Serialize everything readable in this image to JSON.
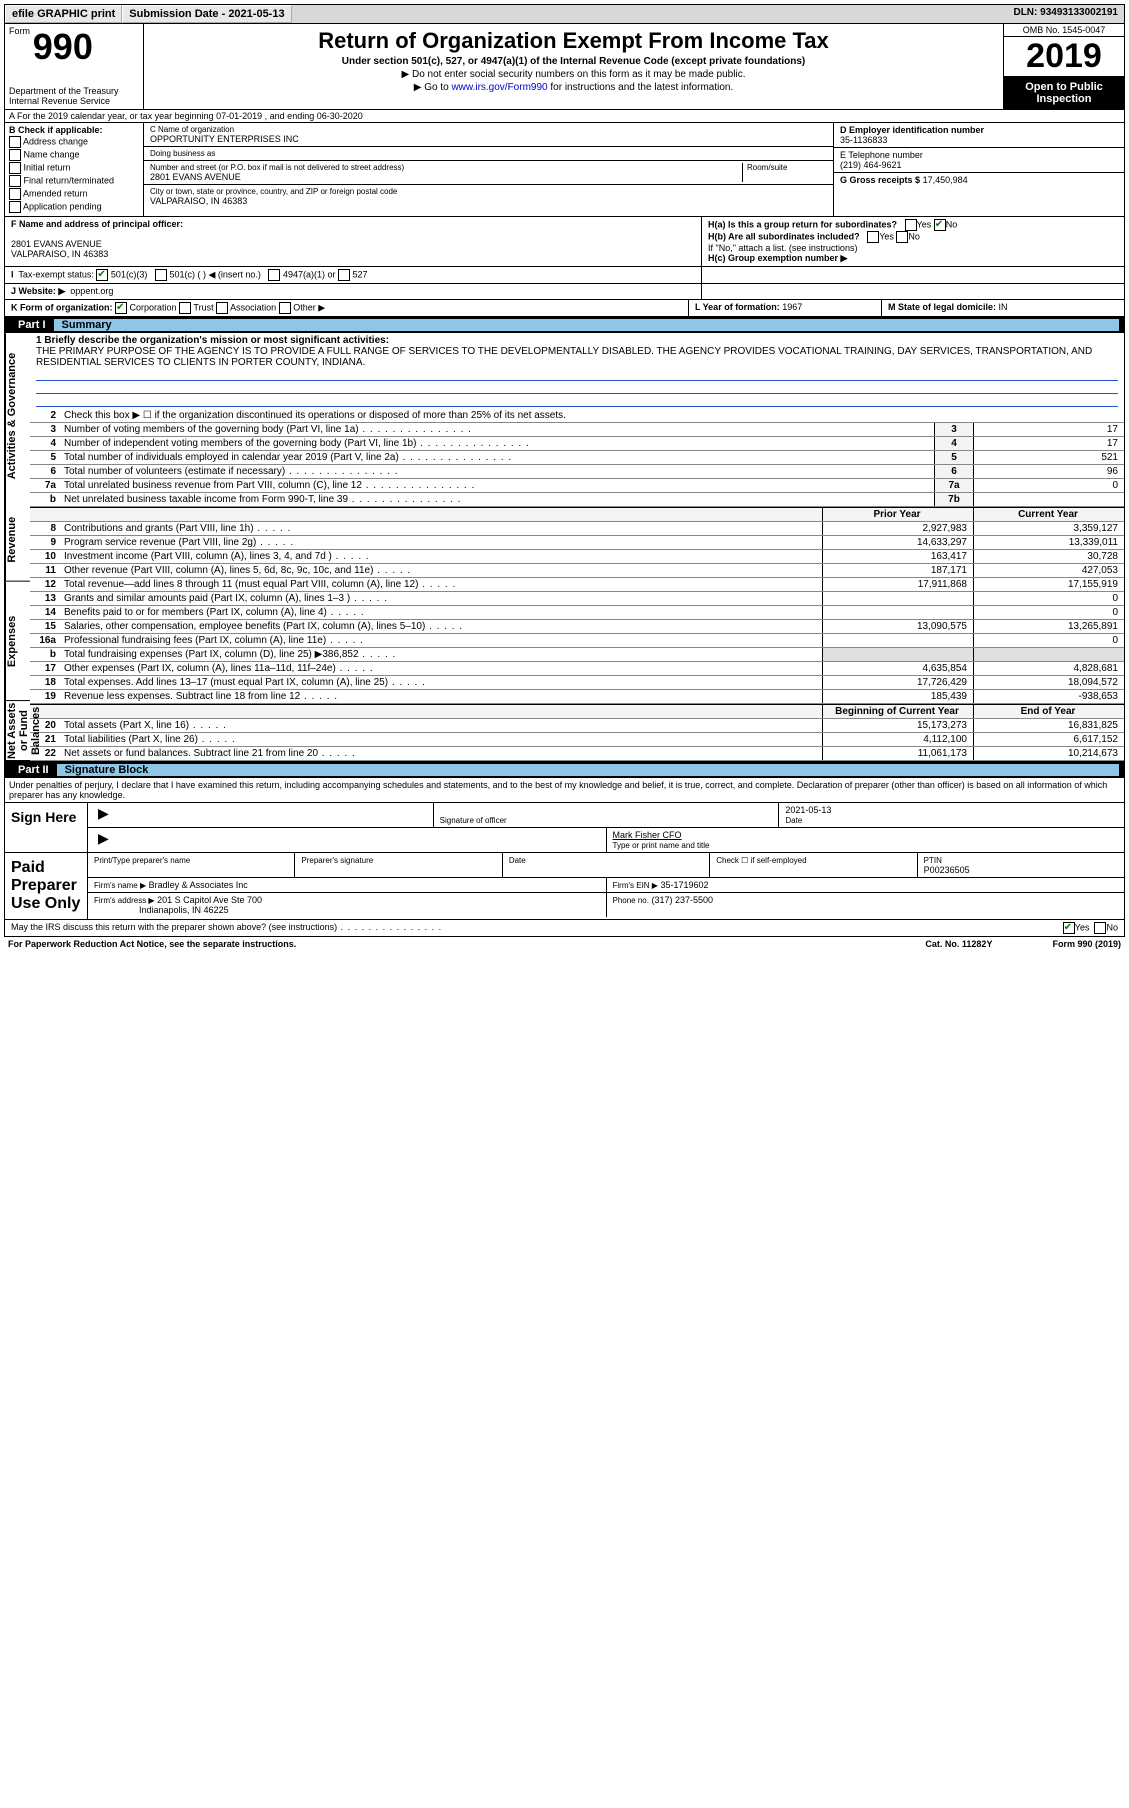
{
  "topbar": {
    "efile": "efile GRAPHIC print",
    "subdate_label": "Submission Date - 2021-05-13",
    "dln": "DLN: 93493133002191"
  },
  "header": {
    "form_label": "Form",
    "form_no": "990",
    "dept": "Department of the Treasury Internal Revenue Service",
    "title": "Return of Organization Exempt From Income Tax",
    "subtitle": "Under section 501(c), 527, or 4947(a)(1) of the Internal Revenue Code (except private foundations)",
    "hint1": "▶ Do not enter social security numbers on this form as it may be made public.",
    "hint2_pre": "▶ Go to ",
    "hint2_link": "www.irs.gov/Form990",
    "hint2_post": " for instructions and the latest information.",
    "omb": "OMB No. 1545-0047",
    "year": "2019",
    "inspect": "Open to Public Inspection"
  },
  "lineA": "A For the 2019 calendar year, or tax year beginning 07-01-2019    , and ending 06-30-2020",
  "boxB": {
    "title": "B Check if applicable:",
    "items": [
      "Address change",
      "Name change",
      "Initial return",
      "Final return/terminated",
      "Amended return",
      "Application pending"
    ]
  },
  "boxC": {
    "name_lbl": "C Name of organization",
    "name": "OPPORTUNITY ENTERPRISES INC",
    "dba_lbl": "Doing business as",
    "dba": "",
    "addr_lbl": "Number and street (or P.O. box if mail is not delivered to street address)",
    "room_lbl": "Room/suite",
    "addr": "2801 EVANS AVENUE",
    "city_lbl": "City or town, state or province, country, and ZIP or foreign postal code",
    "city": "VALPARAISO, IN  46383"
  },
  "boxD": {
    "lbl": "D Employer identification number",
    "val": "35-1136833"
  },
  "boxE": {
    "lbl": "E Telephone number",
    "val": "(219) 464-9621"
  },
  "boxG": {
    "lbl": "G Gross receipts $",
    "val": "17,450,984"
  },
  "boxF": {
    "lbl": "F Name and address of principal officer:",
    "name": "",
    "addr1": "2801 EVANS AVENUE",
    "addr2": "VALPARAISO, IN  46383"
  },
  "boxH": {
    "a": "H(a)  Is this a group return for subordinates?",
    "b": "H(b)  Are all subordinates included?",
    "b_note": "If \"No,\" attach a list. (see instructions)",
    "c": "H(c)  Group exemption number ▶",
    "yes": "Yes",
    "no": "No"
  },
  "boxI": {
    "lbl": "Tax-exempt status:",
    "c3": "501(c)(3)",
    "c": "501(c) (   ) ◀ (insert no.)",
    "a1": "4947(a)(1) or",
    "s527": "527"
  },
  "boxJ": {
    "lbl": "J   Website: ▶",
    "val": "oppent.org"
  },
  "boxK": {
    "lbl": "K Form of organization:",
    "corp": "Corporation",
    "trust": "Trust",
    "assoc": "Association",
    "other": "Other ▶"
  },
  "boxL": {
    "lbl": "L Year of formation:",
    "val": "1967"
  },
  "boxM": {
    "lbl": "M State of legal domicile:",
    "val": "IN"
  },
  "part1": {
    "num": "Part I",
    "title": "Summary"
  },
  "part2": {
    "num": "Part II",
    "title": "Signature Block"
  },
  "vtabs": {
    "act": "Activities & Governance",
    "rev": "Revenue",
    "exp": "Expenses",
    "net": "Net Assets or Fund Balances"
  },
  "briefly_lbl": "1  Briefly describe the organization's mission or most significant activities:",
  "briefly": "THE PRIMARY PURPOSE OF THE AGENCY IS TO PROVIDE A FULL RANGE OF SERVICES TO THE DEVELOPMENTALLY DISABLED. THE AGENCY PROVIDES VOCATIONAL TRAINING, DAY SERVICES, TRANSPORTATION, AND RESIDENTIAL SERVICES TO CLIENTS IN PORTER COUNTY, INDIANA.",
  "line2": "Check this box ▶ ☐  if the organization discontinued its operations or disposed of more than 25% of its net assets.",
  "govlines": [
    {
      "n": "3",
      "t": "Number of voting members of the governing body (Part VI, line 1a)",
      "b": "3",
      "v": "17"
    },
    {
      "n": "4",
      "t": "Number of independent voting members of the governing body (Part VI, line 1b)",
      "b": "4",
      "v": "17"
    },
    {
      "n": "5",
      "t": "Total number of individuals employed in calendar year 2019 (Part V, line 2a)",
      "b": "5",
      "v": "521"
    },
    {
      "n": "6",
      "t": "Total number of volunteers (estimate if necessary)",
      "b": "6",
      "v": "96"
    },
    {
      "n": "7a",
      "t": "Total unrelated business revenue from Part VIII, column (C), line 12",
      "b": "7a",
      "v": "0"
    },
    {
      "n": "b",
      "t": "Net unrelated business taxable income from Form 990-T, line 39",
      "b": "7b",
      "v": ""
    }
  ],
  "col_prior": "Prior Year",
  "col_curr": "Current Year",
  "revlines": [
    {
      "n": "8",
      "t": "Contributions and grants (Part VIII, line 1h)",
      "p": "2,927,983",
      "c": "3,359,127"
    },
    {
      "n": "9",
      "t": "Program service revenue (Part VIII, line 2g)",
      "p": "14,633,297",
      "c": "13,339,011"
    },
    {
      "n": "10",
      "t": "Investment income (Part VIII, column (A), lines 3, 4, and 7d )",
      "p": "163,417",
      "c": "30,728"
    },
    {
      "n": "11",
      "t": "Other revenue (Part VIII, column (A), lines 5, 6d, 8c, 9c, 10c, and 11e)",
      "p": "187,171",
      "c": "427,053"
    },
    {
      "n": "12",
      "t": "Total revenue—add lines 8 through 11 (must equal Part VIII, column (A), line 12)",
      "p": "17,911,868",
      "c": "17,155,919"
    }
  ],
  "explines": [
    {
      "n": "13",
      "t": "Grants and similar amounts paid (Part IX, column (A), lines 1–3 )",
      "p": "",
      "c": "0"
    },
    {
      "n": "14",
      "t": "Benefits paid to or for members (Part IX, column (A), line 4)",
      "p": "",
      "c": "0"
    },
    {
      "n": "15",
      "t": "Salaries, other compensation, employee benefits (Part IX, column (A), lines 5–10)",
      "p": "13,090,575",
      "c": "13,265,891"
    },
    {
      "n": "16a",
      "t": "Professional fundraising fees (Part IX, column (A), line 11e)",
      "p": "",
      "c": "0"
    },
    {
      "n": "b",
      "t": "Total fundraising expenses (Part IX, column (D), line 25) ▶386,852",
      "p": "shade",
      "c": "shade"
    },
    {
      "n": "17",
      "t": "Other expenses (Part IX, column (A), lines 11a–11d, 11f–24e)",
      "p": "4,635,854",
      "c": "4,828,681"
    },
    {
      "n": "18",
      "t": "Total expenses. Add lines 13–17 (must equal Part IX, column (A), line 25)",
      "p": "17,726,429",
      "c": "18,094,572"
    },
    {
      "n": "19",
      "t": "Revenue less expenses. Subtract line 18 from line 12",
      "p": "185,439",
      "c": "-938,653"
    }
  ],
  "col_beg": "Beginning of Current Year",
  "col_end": "End of Year",
  "netlines": [
    {
      "n": "20",
      "t": "Total assets (Part X, line 16)",
      "p": "15,173,273",
      "c": "16,831,825"
    },
    {
      "n": "21",
      "t": "Total liabilities (Part X, line 26)",
      "p": "4,112,100",
      "c": "6,617,152"
    },
    {
      "n": "22",
      "t": "Net assets or fund balances. Subtract line 21 from line 20",
      "p": "11,061,173",
      "c": "10,214,673"
    }
  ],
  "sig": {
    "decl": "Under penalties of perjury, I declare that I have examined this return, including accompanying schedules and statements, and to the best of my knowledge and belief, it is true, correct, and complete. Declaration of preparer (other than officer) is based on all information of which preparer has any knowledge.",
    "sign_here": "Sign Here",
    "sig_officer": "Signature of officer",
    "date_lbl": "Date",
    "date": "2021-05-13",
    "name_title": "Mark Fisher CFO",
    "type_name": "Type or print name and title",
    "paid": "Paid Preparer Use Only",
    "prep_name_lbl": "Print/Type preparer's name",
    "prep_sig_lbl": "Preparer's signature",
    "check_lbl": "Check ☐ if self-employed",
    "ptin_lbl": "PTIN",
    "ptin": "P00236505",
    "firm_name_lbl": "Firm's name    ▶",
    "firm_name": "Bradley & Associates Inc",
    "firm_ein_lbl": "Firm's EIN ▶",
    "firm_ein": "35-1719602",
    "firm_addr_lbl": "Firm's address ▶",
    "firm_addr": "201 S Capitol Ave Ste 700",
    "firm_city": "Indianapolis, IN  46225",
    "phone_lbl": "Phone no.",
    "phone": "(317) 237-5500",
    "discuss": "May the IRS discuss this return with the preparer shown above? (see instructions)"
  },
  "footer": {
    "left": "For Paperwork Reduction Act Notice, see the separate instructions.",
    "mid": "Cat. No. 11282Y",
    "right": "Form 990 (2019)"
  }
}
